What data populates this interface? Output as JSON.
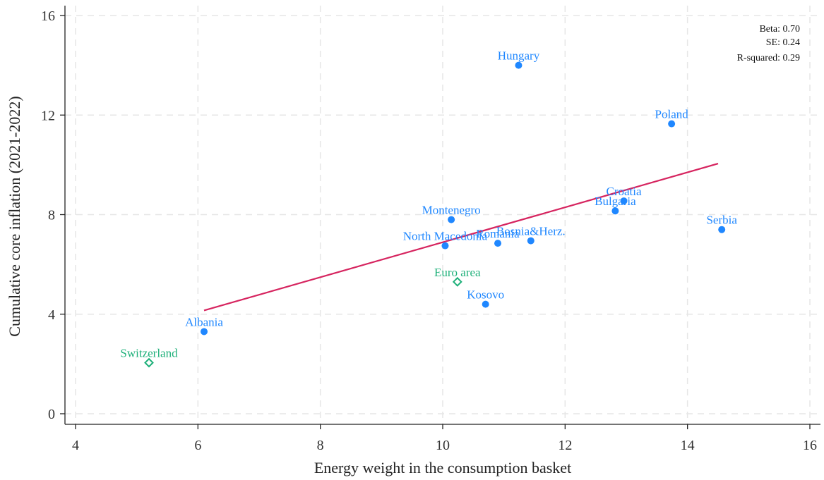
{
  "chart_data": {
    "type": "scatter",
    "title": "",
    "xlabel": "Energy weight in the consumption basket",
    "ylabel": "Cumulative core inflation (2021-2022)",
    "xlim": [
      4,
      16
    ],
    "ylim": [
      0,
      16
    ],
    "xticks": [
      4,
      6,
      8,
      10,
      12,
      14,
      16
    ],
    "yticks": [
      0,
      4,
      8,
      12,
      16
    ],
    "grid": true,
    "series": [
      {
        "marker": "filled-circle",
        "color": "#1f87ff",
        "points": [
          {
            "label": "Hungary",
            "x": 11.24,
            "y": 14.0
          },
          {
            "label": "Poland",
            "x": 13.74,
            "y": 11.65
          },
          {
            "label": "Croatia",
            "x": 12.96,
            "y": 8.55
          },
          {
            "label": "Bulgaria",
            "x": 12.82,
            "y": 8.15
          },
          {
            "label": "Serbia",
            "x": 14.56,
            "y": 7.4
          },
          {
            "label": "Montenegro",
            "x": 10.14,
            "y": 7.8
          },
          {
            "label": "North Macedonia",
            "x": 10.04,
            "y": 6.75
          },
          {
            "label": "Romania",
            "x": 10.9,
            "y": 6.85
          },
          {
            "label": "Bosnia&Herz.",
            "x": 11.44,
            "y": 6.95
          },
          {
            "label": "Kosovo",
            "x": 10.7,
            "y": 4.4
          },
          {
            "label": "Albania",
            "x": 6.1,
            "y": 3.3
          }
        ]
      },
      {
        "marker": "hollow-diamond",
        "color": "#1fb07a",
        "points": [
          {
            "label": "Euro area",
            "x": 10.24,
            "y": 5.3
          },
          {
            "label": "Switzerland",
            "x": 5.2,
            "y": 2.05
          }
        ]
      }
    ],
    "fit_line": {
      "color": "#d6245f",
      "x": [
        6.1,
        14.5
      ],
      "y": [
        4.15,
        10.05
      ]
    },
    "stats": {
      "beta": "Beta: 0.70",
      "se": "SE: 0.24",
      "r_squared": "R-squared: 0.29"
    },
    "stats_position": "top-right"
  }
}
